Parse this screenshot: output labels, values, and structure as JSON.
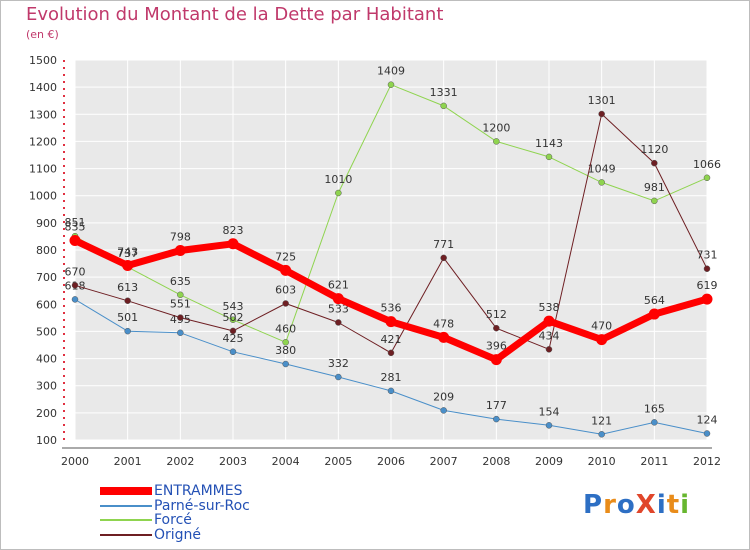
{
  "title": "Evolution du Montant de la Dette par Habitant",
  "subtitle": "(en €)",
  "logo": {
    "text": "ProXiti",
    "letter_colors": [
      "#2d6fc4",
      "#e98c1a",
      "#2d6fc4",
      "#e0462b",
      "#2d6fc4",
      "#e98c1a",
      "#67b62f"
    ]
  },
  "chart_data": {
    "type": "line",
    "x": [
      "2000",
      "2001",
      "2002",
      "2003",
      "2004",
      "2005",
      "2006",
      "2007",
      "2008",
      "2009",
      "2010",
      "2011",
      "2012"
    ],
    "ylim": [
      100,
      1500
    ],
    "yticks": [
      100,
      200,
      300,
      400,
      500,
      600,
      700,
      800,
      900,
      1000,
      1100,
      1200,
      1300,
      1400,
      1500
    ],
    "grid": true,
    "legend_position": "bottom-left",
    "series": [
      {
        "name": "ENTRAMMES",
        "color": "#ff0000",
        "width": 7,
        "values": [
          835,
          743,
          798,
          823,
          725,
          621,
          536,
          478,
          396,
          538,
          470,
          564,
          619
        ]
      },
      {
        "name": "Parné-sur-Roc",
        "color": "#4a8fc9",
        "width": 1,
        "values": [
          618,
          501,
          495,
          425,
          380,
          332,
          281,
          209,
          177,
          154,
          121,
          165,
          124
        ]
      },
      {
        "name": "Forcé",
        "color": "#8fd44f",
        "width": 1,
        "values": [
          851,
          737,
          635,
          543,
          460,
          1010,
          1409,
          1331,
          1200,
          1143,
          1049,
          981,
          1066
        ]
      },
      {
        "name": "Origné",
        "color": "#6e1f23",
        "width": 1,
        "values": [
          670,
          613,
          551,
          502,
          603,
          533,
          421,
          771,
          512,
          434,
          1301,
          1120,
          731
        ]
      }
    ]
  }
}
